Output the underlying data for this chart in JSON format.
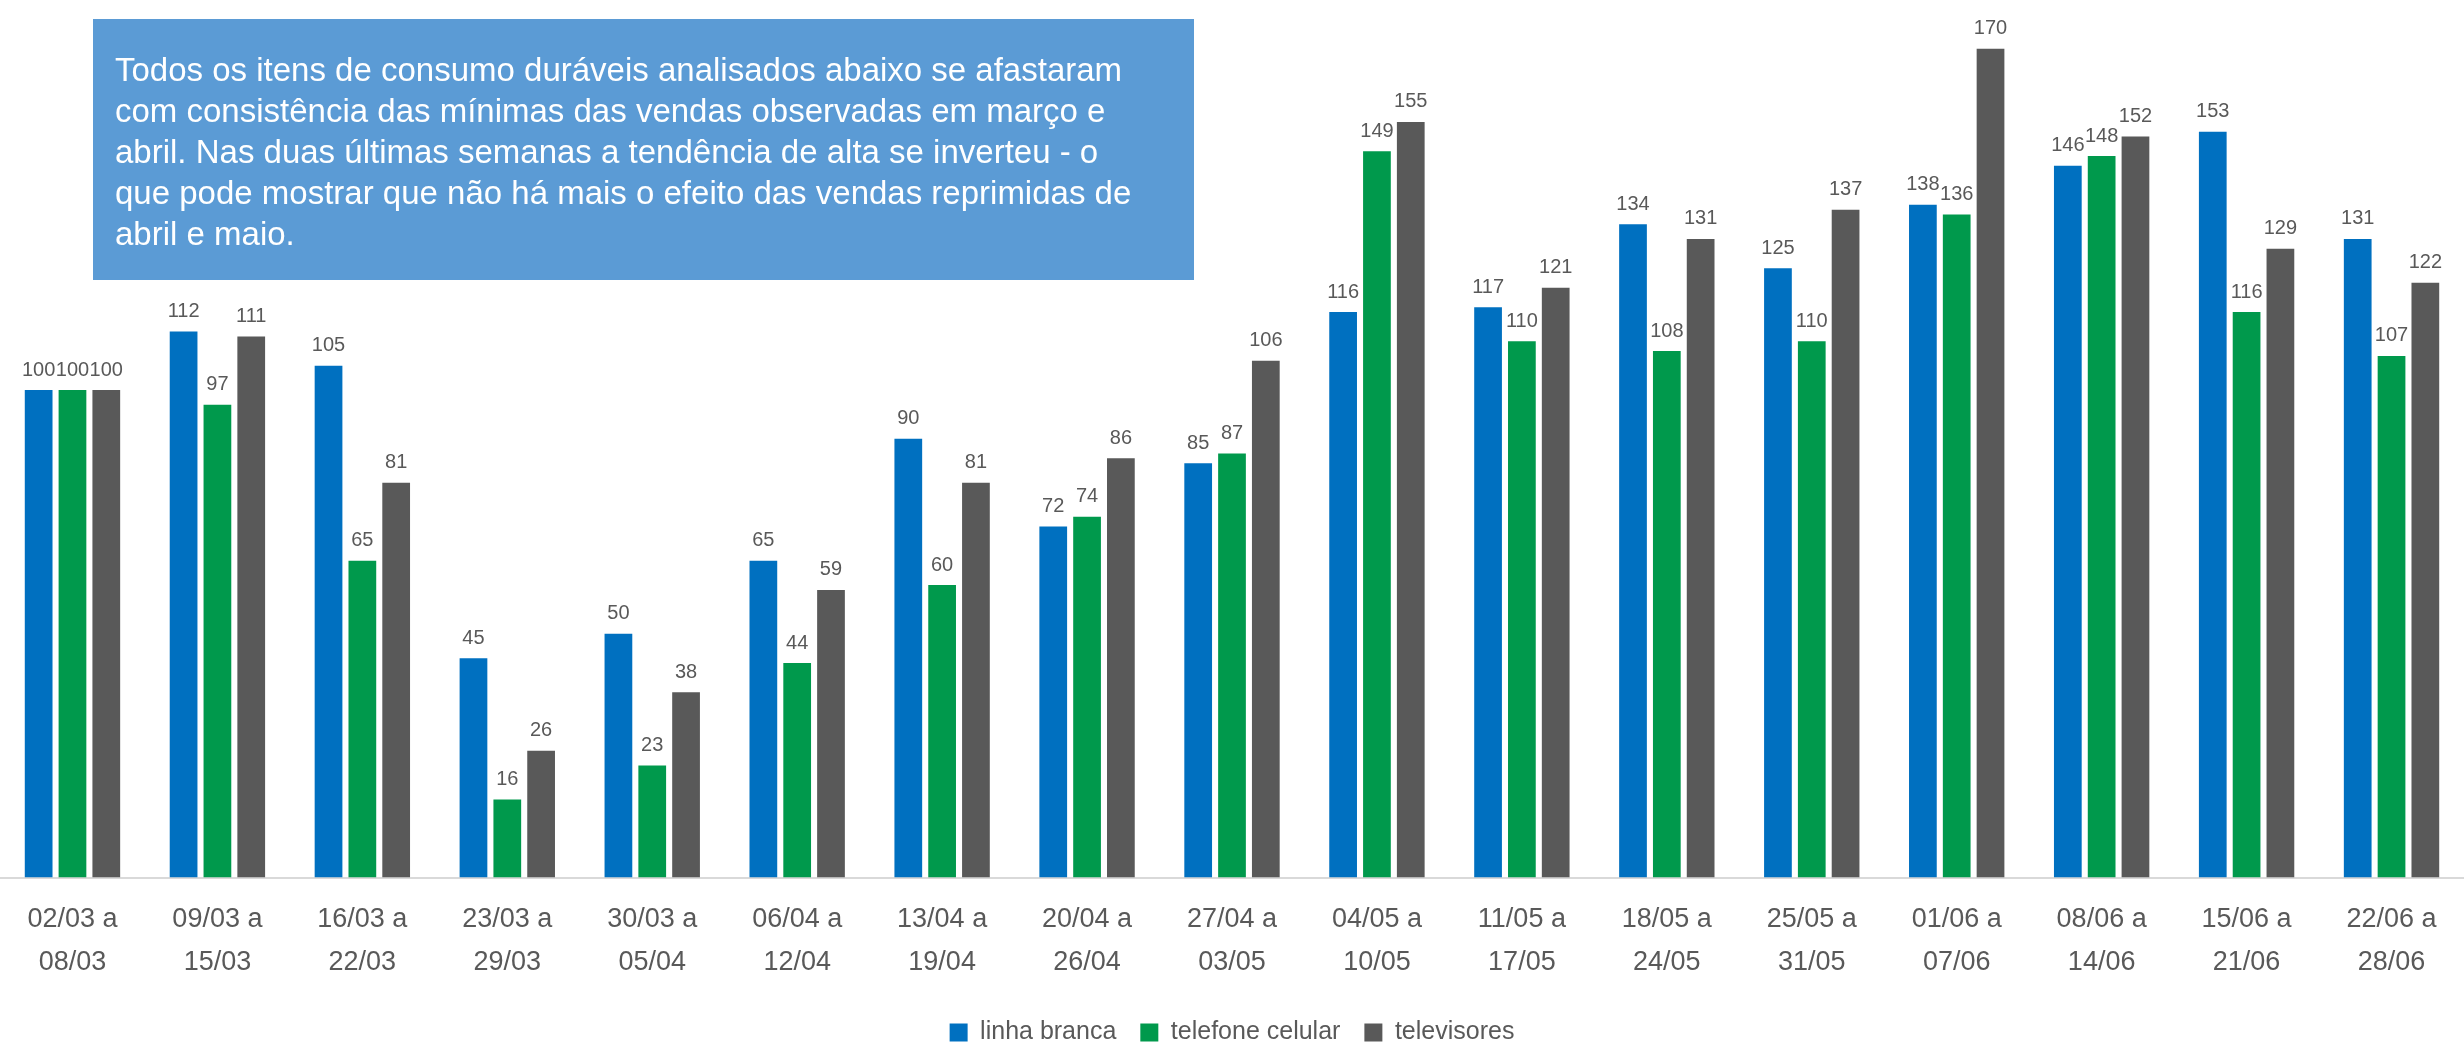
{
  "chart_data": {
    "type": "bar",
    "annotations": [
      "Todos os itens de consumo duráveis analisados abaixo se afastaram com consistência das mínimas das vendas observadas em março e abril. Nas duas últimas semanas a tendência de alta se inverteu - o que pode mostrar que não há mais o efeito das vendas reprimidas de abril e maio."
    ],
    "categories": [
      "02/03 a 08/03",
      "09/03 a 15/03",
      "16/03 a 22/03",
      "23/03 a 29/03",
      "30/03 a 05/04",
      "06/04 a 12/04",
      "13/04 a 19/04",
      "20/04 a 26/04",
      "27/04 a 03/05",
      "04/05 a 10/05",
      "11/05 a 17/05",
      "18/05 a 24/05",
      "25/05 a 31/05",
      "01/06 a 07/06",
      "08/06 a 14/06",
      "15/06 a 21/06",
      "22/06 a 28/06"
    ],
    "series": [
      {
        "name": "linha branca",
        "color": "#0070c0",
        "values": [
          100,
          112,
          105,
          45,
          50,
          65,
          90,
          72,
          85,
          116,
          117,
          134,
          125,
          138,
          146,
          153,
          131
        ]
      },
      {
        "name": "telefone celular",
        "color": "#00994c",
        "values": [
          100,
          97,
          65,
          16,
          23,
          44,
          60,
          74,
          87,
          149,
          110,
          108,
          110,
          136,
          148,
          116,
          107
        ]
      },
      {
        "name": "televisores",
        "color": "#595959",
        "values": [
          100,
          111,
          81,
          26,
          38,
          59,
          81,
          86,
          106,
          155,
          121,
          131,
          137,
          170,
          152,
          129,
          122
        ]
      }
    ],
    "data_labels": true,
    "legend": "bottom"
  }
}
